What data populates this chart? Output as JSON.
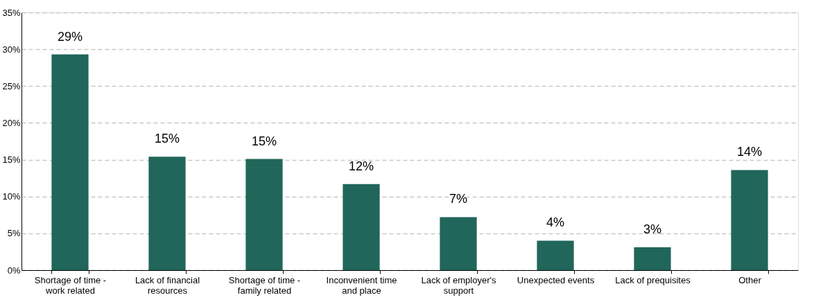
{
  "chart_data": {
    "type": "bar",
    "categories": [
      "Shortage of time -\nwork related",
      "Lack of financial\nresources",
      "Shortage of time -\nfamily related",
      "Inconvenient time\nand place",
      "Lack of employer's\nsupport",
      "Unexpected events",
      "Lack of prequisites",
      "Other"
    ],
    "values": [
      29.3,
      15.4,
      15.1,
      11.7,
      7.2,
      4.0,
      3.1,
      13.6
    ],
    "value_labels": [
      "29%",
      "15%",
      "15%",
      "12%",
      "7%",
      "4%",
      "3%",
      "14%"
    ],
    "color": "#21665a",
    "ylim": [
      0,
      35
    ],
    "yticks": [
      {
        "value": 0,
        "label": "0%"
      },
      {
        "value": 5,
        "label": "5%"
      },
      {
        "value": 10,
        "label": "10%"
      },
      {
        "value": 15,
        "label": "15%"
      },
      {
        "value": 20,
        "label": "20%"
      },
      {
        "value": 25,
        "label": "25%"
      },
      {
        "value": 30,
        "label": "30%"
      },
      {
        "value": 35,
        "label": "35%"
      }
    ],
    "grid": "y"
  }
}
